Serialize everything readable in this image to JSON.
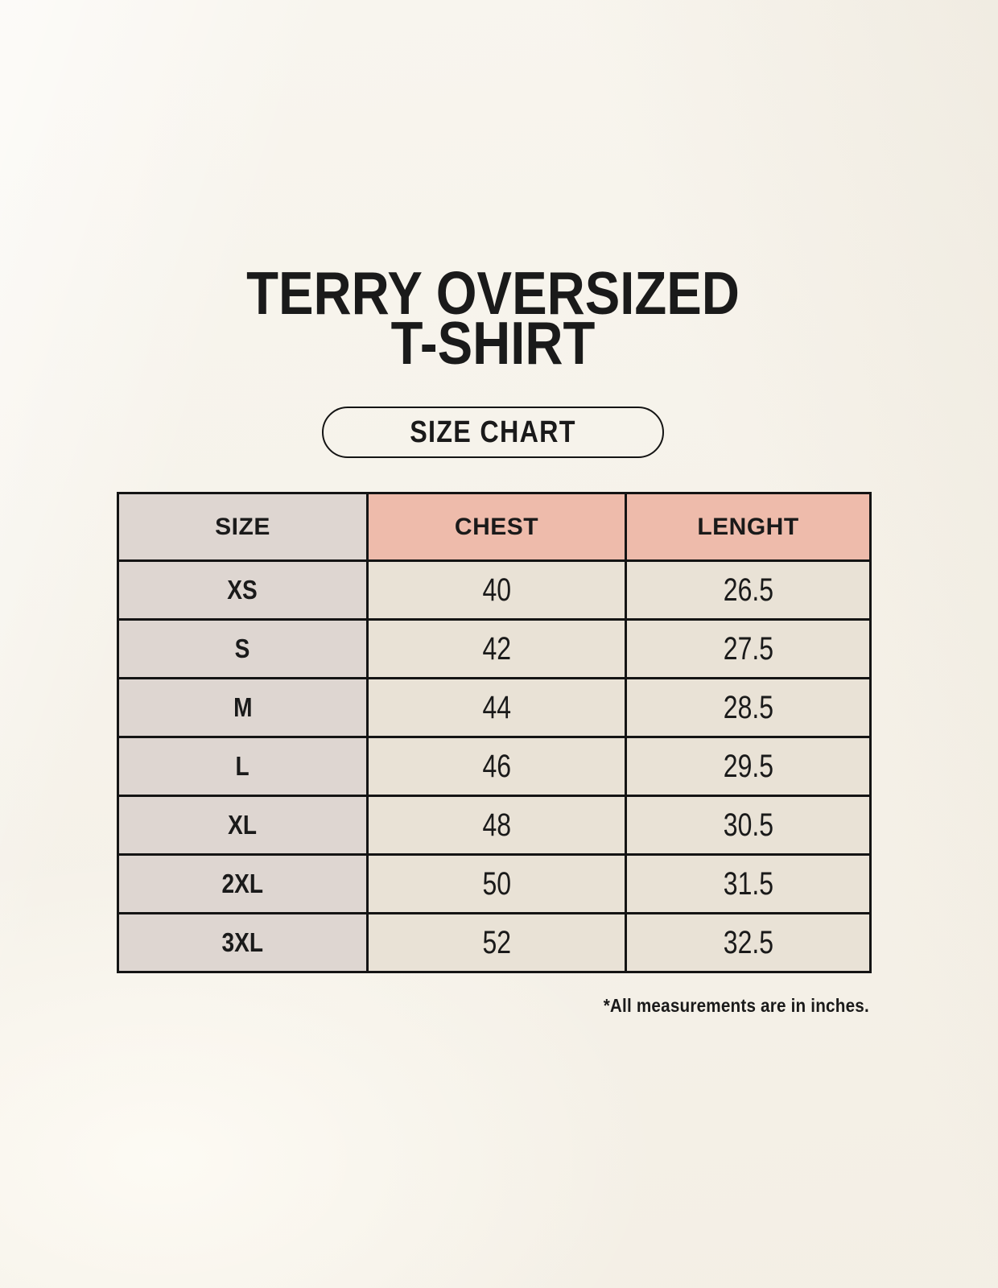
{
  "title": {
    "line1": "TERRY OVERSIZED",
    "line2": "T-SHIRT"
  },
  "badge": {
    "label": "SIZE CHART"
  },
  "footnote": "*All measurements are in inches.",
  "chart_data": {
    "type": "table",
    "title": "TERRY OVERSIZED T-SHIRT",
    "subtitle": "SIZE CHART",
    "columns": [
      "SIZE",
      "CHEST",
      "LENGHT"
    ],
    "rows": [
      [
        "XS",
        "40",
        "26.5"
      ],
      [
        "S",
        "42",
        "27.5"
      ],
      [
        "M",
        "44",
        "28.5"
      ],
      [
        "L",
        "46",
        "29.5"
      ],
      [
        "XL",
        "48",
        "30.5"
      ],
      [
        "2XL",
        "50",
        "31.5"
      ],
      [
        "3XL",
        "52",
        "32.5"
      ]
    ],
    "units_note": "*All measurements are in inches."
  },
  "colors": {
    "background": "#f6f2e9",
    "header_accent": "#eebbab",
    "size_column": "#ded6d1",
    "data_cell": "#e9e2d6",
    "border": "#141414",
    "text": "#1a1a1a"
  }
}
